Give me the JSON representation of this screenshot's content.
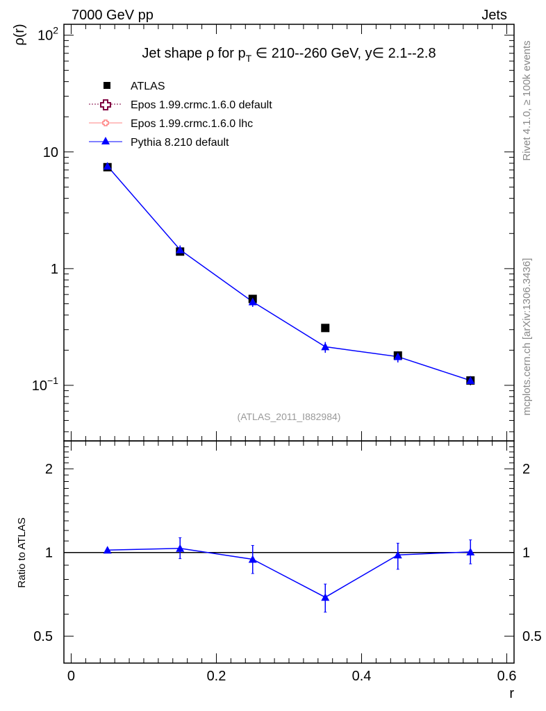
{
  "header": {
    "left": "7000 GeV pp",
    "right": "Jets"
  },
  "side": {
    "top": "Rivet 4.1.0, ≥ 100k events",
    "bottom": "mcplots.cern.ch [arXiv:1306.3436]"
  },
  "chart_data": [
    {
      "type": "line",
      "title": "Jet shape ρ for p_T ∈ 210--260 GeV, y∈ 2.1--2.8",
      "title_parts": {
        "a": "Jet shape ρ for p",
        "b": "T",
        "c": " ∈ 210--260 GeV, y∈ 2.1--2.8"
      },
      "ylabel": "ρ(r)",
      "yscale": "log",
      "ylim": [
        0.0334,
        124
      ],
      "xlim": [
        -0.01,
        0.61
      ],
      "yticks": [
        {
          "v": 100,
          "l": "10",
          "e": "2"
        },
        {
          "v": 10,
          "l": "10",
          "e": ""
        },
        {
          "v": 1,
          "l": "1",
          "e": ""
        },
        {
          "v": 0.1,
          "l": "10",
          "e": "−1"
        }
      ],
      "annotation": "(ATLAS_2011_I882984)",
      "legend": [
        "ATLAS",
        "Epos 1.99.crmc.1.6.0 default",
        "Epos 1.99.crmc.1.6.0 lhc",
        "Pythia 8.210 default"
      ],
      "x": [
        0.05,
        0.15,
        0.25,
        0.35,
        0.45,
        0.55
      ],
      "series": [
        {
          "name": "ATLAS",
          "values": [
            7.4,
            1.4,
            0.55,
            0.31,
            0.18,
            0.11
          ],
          "color": "#000000"
        },
        {
          "name": "Pythia 8.210 default",
          "values": [
            7.55,
            1.45,
            0.52,
            0.214,
            0.176,
            0.11
          ],
          "err_lo": [
            7.3,
            1.3,
            0.47,
            0.19,
            0.157,
            0.1
          ],
          "err_hi": [
            7.8,
            1.58,
            0.57,
            0.235,
            0.195,
            0.12
          ],
          "color": "#0000ff"
        }
      ]
    },
    {
      "type": "line",
      "ylabel": "Ratio to ATLAS",
      "xlabel": "r",
      "yscale": "log",
      "ylim": [
        0.4,
        2.52
      ],
      "yticks": [
        0.5,
        1,
        2
      ],
      "xticks": [
        0,
        0.2,
        0.4,
        0.6
      ],
      "x": [
        0.05,
        0.15,
        0.25,
        0.35,
        0.45,
        0.55
      ],
      "series": [
        {
          "name": "Pythia 8.210 default",
          "values": [
            1.02,
            1.035,
            0.945,
            0.69,
            0.98,
            1.005
          ],
          "err_lo": [
            1.01,
            0.95,
            0.84,
            0.61,
            0.87,
            0.91
          ],
          "err_hi": [
            1.03,
            1.13,
            1.06,
            0.77,
            1.08,
            1.11
          ],
          "color": "#0000ff"
        }
      ]
    }
  ]
}
